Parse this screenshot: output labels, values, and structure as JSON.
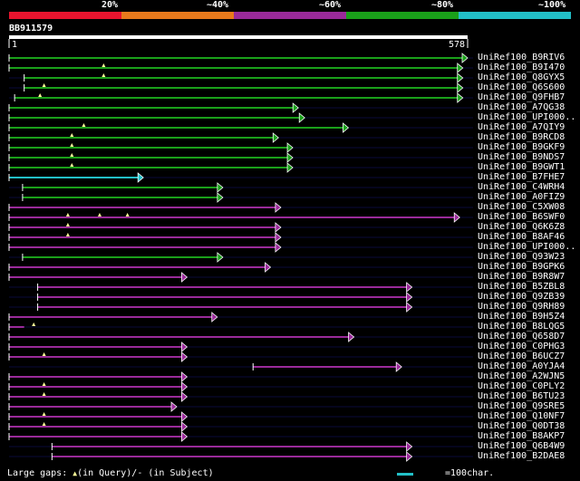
{
  "legend": {
    "labels": [
      "20%",
      "~40%",
      "~60%",
      "~80%",
      "~100%"
    ],
    "colors": [
      "#e8142e",
      "#e87a1c",
      "#9a2a9a",
      "#1aa01a",
      "#22c0c8"
    ]
  },
  "query": {
    "name": "BB911579",
    "start_label": "1",
    "end_label": "578",
    "length": 578
  },
  "footer": {
    "gaps_prefix": "Large gaps: ",
    "gaps_query": "(in Query)/",
    "gaps_dash": "-",
    "gaps_subject": " (in Subject)",
    "scale_text": "=100char."
  },
  "chart_data": {
    "type": "alignment-overview",
    "query_name": "BB911579",
    "query_length": 578,
    "xlim": [
      1,
      578
    ],
    "hits": [
      {
        "name": "UniRef100_B9RIV6",
        "start": 1,
        "end": 578,
        "identity": "~80%",
        "arrow": true
      },
      {
        "name": "UniRef100_B9I470",
        "start": 1,
        "end": 572,
        "identity": "~80%",
        "arrow": true,
        "gaps": [
          120
        ]
      },
      {
        "name": "UniRef100_Q8GYX5",
        "start": 20,
        "end": 572,
        "identity": "~80%",
        "arrow": true,
        "gaps": [
          120
        ]
      },
      {
        "name": "UniRef100_Q6S600",
        "start": 20,
        "end": 572,
        "identity": "~80%",
        "arrow": true,
        "gaps": [
          45
        ]
      },
      {
        "name": "UniRef100_Q9FHB7",
        "start": 8,
        "end": 572,
        "identity": "~80%",
        "arrow": true,
        "gaps": [
          40
        ]
      },
      {
        "name": "UniRef100_A7QG38",
        "start": 1,
        "end": 365,
        "identity": "~80%",
        "arrow": true
      },
      {
        "name": "UniRef100_UPI000..",
        "start": 1,
        "end": 373,
        "identity": "~80%",
        "arrow": true
      },
      {
        "name": "UniRef100_A7QIY9",
        "start": 1,
        "end": 428,
        "identity": "~80%",
        "arrow": true,
        "gaps": [
          95
        ]
      },
      {
        "name": "UniRef100_B9RCD8",
        "start": 1,
        "end": 340,
        "identity": "~80%",
        "arrow": true,
        "gaps": [
          80
        ]
      },
      {
        "name": "UniRef100_B9GKF9",
        "start": 1,
        "end": 358,
        "identity": "~80%",
        "arrow": true,
        "gaps": [
          80
        ]
      },
      {
        "name": "UniRef100_B9NDS7",
        "start": 1,
        "end": 358,
        "identity": "~80%",
        "arrow": true,
        "gaps": [
          80
        ]
      },
      {
        "name": "UniRef100_B9GWT1",
        "start": 1,
        "end": 358,
        "identity": "~80%",
        "arrow": true,
        "gaps": [
          80
        ]
      },
      {
        "name": "UniRef100_B7FHE7",
        "start": 1,
        "end": 170,
        "identity": "~100%",
        "arrow": true
      },
      {
        "name": "UniRef100_C4WRH4",
        "start": 18,
        "end": 270,
        "identity": "~80%",
        "arrow": true
      },
      {
        "name": "UniRef100_A0FIZ9",
        "start": 18,
        "end": 270,
        "identity": "~80%",
        "arrow": true
      },
      {
        "name": "UniRef100_C5XW08",
        "start": 1,
        "end": 343,
        "identity": "~60%",
        "arrow": true
      },
      {
        "name": "UniRef100_B6SWF0",
        "start": 1,
        "end": 568,
        "identity": "~60%",
        "arrow": true,
        "gaps": [
          75,
          115,
          150
        ]
      },
      {
        "name": "UniRef100_Q6K6Z8",
        "start": 1,
        "end": 343,
        "identity": "~60%",
        "arrow": true,
        "gaps": [
          75
        ]
      },
      {
        "name": "UniRef100_B8AF46",
        "start": 1,
        "end": 343,
        "identity": "~60%",
        "arrow": true,
        "gaps": [
          75
        ]
      },
      {
        "name": "UniRef100_UPI000..",
        "start": 1,
        "end": 343,
        "identity": "~60%",
        "arrow": true
      },
      {
        "name": "UniRef100_Q93W23",
        "start": 18,
        "end": 270,
        "identity": "~80%",
        "arrow": true
      },
      {
        "name": "UniRef100_B9GPK6",
        "start": 1,
        "end": 330,
        "identity": "~60%",
        "arrow": true
      },
      {
        "name": "UniRef100_B9R8W7",
        "start": 1,
        "end": 225,
        "identity": "~60%",
        "arrow": true
      },
      {
        "name": "UniRef100_B5ZBL8",
        "start": 37,
        "end": 508,
        "identity": "~60%",
        "arrow": true
      },
      {
        "name": "UniRef100_Q9ZB39",
        "start": 37,
        "end": 508,
        "identity": "~60%",
        "arrow": true
      },
      {
        "name": "UniRef100_Q9RH89",
        "start": 37,
        "end": 508,
        "identity": "~60%",
        "arrow": true
      },
      {
        "name": "UniRef100_B9H5Z4",
        "start": 1,
        "end": 263,
        "identity": "~60%",
        "arrow": true
      },
      {
        "name": "UniRef100_B8LQG5",
        "start": 1,
        "end": 20,
        "identity": "~60%",
        "arrow": false,
        "gaps": [
          32
        ]
      },
      {
        "name": "UniRef100_Q658D7",
        "start": 1,
        "end": 435,
        "identity": "~60%",
        "arrow": true
      },
      {
        "name": "UniRef100_C0PHG3",
        "start": 1,
        "end": 225,
        "identity": "~60%",
        "arrow": true
      },
      {
        "name": "UniRef100_B6UCZ7",
        "start": 1,
        "end": 225,
        "identity": "~60%",
        "arrow": true,
        "gaps": [
          45
        ]
      },
      {
        "name": "UniRef100_A0YJA4",
        "start": 308,
        "end": 495,
        "identity": "~60%",
        "arrow": true
      },
      {
        "name": "UniRef100_A2WJN5",
        "start": 1,
        "end": 225,
        "identity": "~60%",
        "arrow": true
      },
      {
        "name": "UniRef100_C0PLY2",
        "start": 1,
        "end": 225,
        "identity": "~60%",
        "arrow": true,
        "gaps": [
          45
        ]
      },
      {
        "name": "UniRef100_B6TU23",
        "start": 1,
        "end": 225,
        "identity": "~60%",
        "arrow": true,
        "gaps": [
          45
        ]
      },
      {
        "name": "UniRef100_Q9SRE5",
        "start": 1,
        "end": 212,
        "identity": "~60%",
        "arrow": true
      },
      {
        "name": "UniRef100_Q10NF7",
        "start": 1,
        "end": 225,
        "identity": "~60%",
        "arrow": true,
        "gaps": [
          45
        ]
      },
      {
        "name": "UniRef100_Q0DT38",
        "start": 1,
        "end": 225,
        "identity": "~60%",
        "arrow": true,
        "gaps": [
          45
        ]
      },
      {
        "name": "UniRef100_B8AKP7",
        "start": 1,
        "end": 225,
        "identity": "~60%",
        "arrow": true
      },
      {
        "name": "UniRef100_Q6B4W9",
        "start": 55,
        "end": 508,
        "identity": "~60%",
        "arrow": true
      },
      {
        "name": "UniRef100_B2DAE8",
        "start": 55,
        "end": 508,
        "identity": "~60%",
        "arrow": true
      }
    ]
  }
}
